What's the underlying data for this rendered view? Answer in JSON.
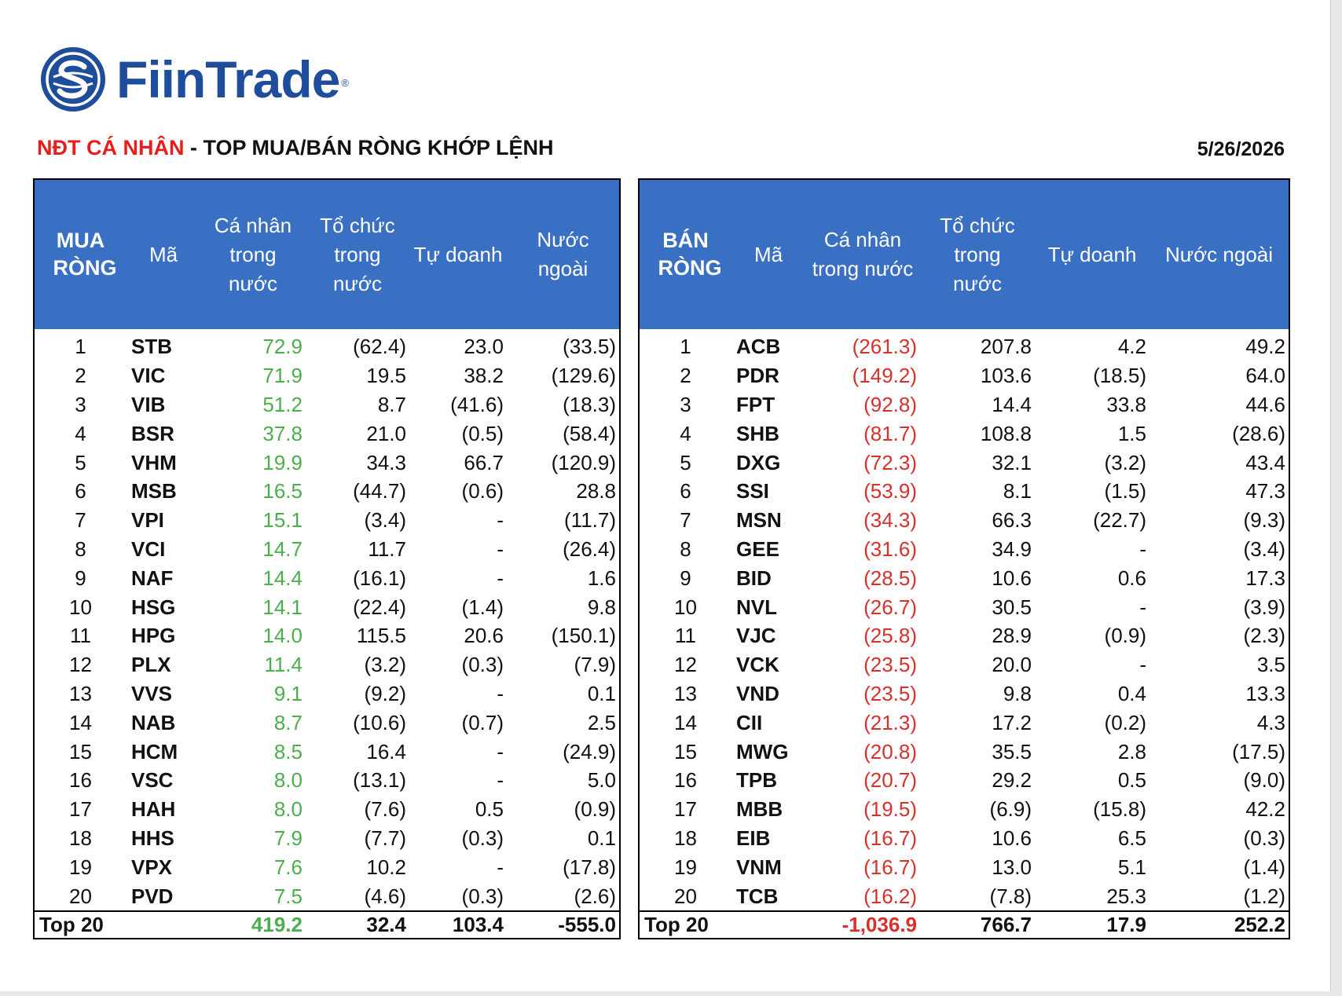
{
  "brand": {
    "name": "FiinTrade",
    "reg_mark": "®",
    "color": "#1e4d9b"
  },
  "report": {
    "title_highlight": "NĐT CÁ NHÂN",
    "title_rest": " - TOP MUA/BÁN RÒNG KHỚP LỆNH",
    "date": "5/26/2026"
  },
  "colors": {
    "header_bg": "#3a70c4",
    "positive": "#4cae4c",
    "negative": "#d9302c",
    "title_red": "#e4201f"
  },
  "buy_table": {
    "headers": [
      "MUA RÒNG",
      "Mã",
      "Cá nhân trong nước",
      "Tổ chức trong nước",
      "Tự doanh",
      "Nước ngoài"
    ],
    "rows": [
      [
        "1",
        "STB",
        "72.9",
        "(62.4)",
        "23.0",
        "(33.5)"
      ],
      [
        "2",
        "VIC",
        "71.9",
        "19.5",
        "38.2",
        "(129.6)"
      ],
      [
        "3",
        "VIB",
        "51.2",
        "8.7",
        "(41.6)",
        "(18.3)"
      ],
      [
        "4",
        "BSR",
        "37.8",
        "21.0",
        "(0.5)",
        "(58.4)"
      ],
      [
        "5",
        "VHM",
        "19.9",
        "34.3",
        "66.7",
        "(120.9)"
      ],
      [
        "6",
        "MSB",
        "16.5",
        "(44.7)",
        "(0.6)",
        "28.8"
      ],
      [
        "7",
        "VPI",
        "15.1",
        "(3.4)",
        "-",
        "(11.7)"
      ],
      [
        "8",
        "VCI",
        "14.7",
        "11.7",
        "-",
        "(26.4)"
      ],
      [
        "9",
        "NAF",
        "14.4",
        "(16.1)",
        "-",
        "1.6"
      ],
      [
        "10",
        "HSG",
        "14.1",
        "(22.4)",
        "(1.4)",
        "9.8"
      ],
      [
        "11",
        "HPG",
        "14.0",
        "115.5",
        "20.6",
        "(150.1)"
      ],
      [
        "12",
        "PLX",
        "11.4",
        "(3.2)",
        "(0.3)",
        "(7.9)"
      ],
      [
        "13",
        "VVS",
        "9.1",
        "(9.2)",
        "-",
        "0.1"
      ],
      [
        "14",
        "NAB",
        "8.7",
        "(10.6)",
        "(0.7)",
        "2.5"
      ],
      [
        "15",
        "HCM",
        "8.5",
        "16.4",
        "-",
        "(24.9)"
      ],
      [
        "16",
        "VSC",
        "8.0",
        "(13.1)",
        "-",
        "5.0"
      ],
      [
        "17",
        "HAH",
        "8.0",
        "(7.6)",
        "0.5",
        "(0.9)"
      ],
      [
        "18",
        "HHS",
        "7.9",
        "(7.7)",
        "(0.3)",
        "0.1"
      ],
      [
        "19",
        "VPX",
        "7.6",
        "10.2",
        "-",
        "(17.8)"
      ],
      [
        "20",
        "PVD",
        "7.5",
        "(4.6)",
        "(0.3)",
        "(2.6)"
      ]
    ],
    "total": [
      "Top 20",
      "",
      "419.2",
      "32.4",
      "103.4",
      "-555.0"
    ]
  },
  "sell_table": {
    "headers": [
      "BÁN RÒNG",
      "Mã",
      "Cá nhân trong nước",
      "Tổ chức trong nước",
      "Tự doanh",
      "Nước ngoài"
    ],
    "rows": [
      [
        "1",
        "ACB",
        "(261.3)",
        "207.8",
        "4.2",
        "49.2"
      ],
      [
        "2",
        "PDR",
        "(149.2)",
        "103.6",
        "(18.5)",
        "64.0"
      ],
      [
        "3",
        "FPT",
        "(92.8)",
        "14.4",
        "33.8",
        "44.6"
      ],
      [
        "4",
        "SHB",
        "(81.7)",
        "108.8",
        "1.5",
        "(28.6)"
      ],
      [
        "5",
        "DXG",
        "(72.3)",
        "32.1",
        "(3.2)",
        "43.4"
      ],
      [
        "6",
        "SSI",
        "(53.9)",
        "8.1",
        "(1.5)",
        "47.3"
      ],
      [
        "7",
        "MSN",
        "(34.3)",
        "66.3",
        "(22.7)",
        "(9.3)"
      ],
      [
        "8",
        "GEE",
        "(31.6)",
        "34.9",
        "-",
        "(3.4)"
      ],
      [
        "9",
        "BID",
        "(28.5)",
        "10.6",
        "0.6",
        "17.3"
      ],
      [
        "10",
        "NVL",
        "(26.7)",
        "30.5",
        "-",
        "(3.9)"
      ],
      [
        "11",
        "VJC",
        "(25.8)",
        "28.9",
        "(0.9)",
        "(2.3)"
      ],
      [
        "12",
        "VCK",
        "(23.5)",
        "20.0",
        "-",
        "3.5"
      ],
      [
        "13",
        "VND",
        "(23.5)",
        "9.8",
        "0.4",
        "13.3"
      ],
      [
        "14",
        "CII",
        "(21.3)",
        "17.2",
        "(0.2)",
        "4.3"
      ],
      [
        "15",
        "MWG",
        "(20.8)",
        "35.5",
        "2.8",
        "(17.5)"
      ],
      [
        "16",
        "TPB",
        "(20.7)",
        "29.2",
        "0.5",
        "(9.0)"
      ],
      [
        "17",
        "MBB",
        "(19.5)",
        "(6.9)",
        "(15.8)",
        "42.2"
      ],
      [
        "18",
        "EIB",
        "(16.7)",
        "10.6",
        "6.5",
        "(0.3)"
      ],
      [
        "19",
        "VNM",
        "(16.7)",
        "13.0",
        "5.1",
        "(1.4)"
      ],
      [
        "20",
        "TCB",
        "(16.2)",
        "(7.8)",
        "25.3",
        "(1.2)"
      ]
    ],
    "total": [
      "Top 20",
      "",
      "-1,036.9",
      "766.7",
      "17.9",
      "252.2"
    ]
  }
}
